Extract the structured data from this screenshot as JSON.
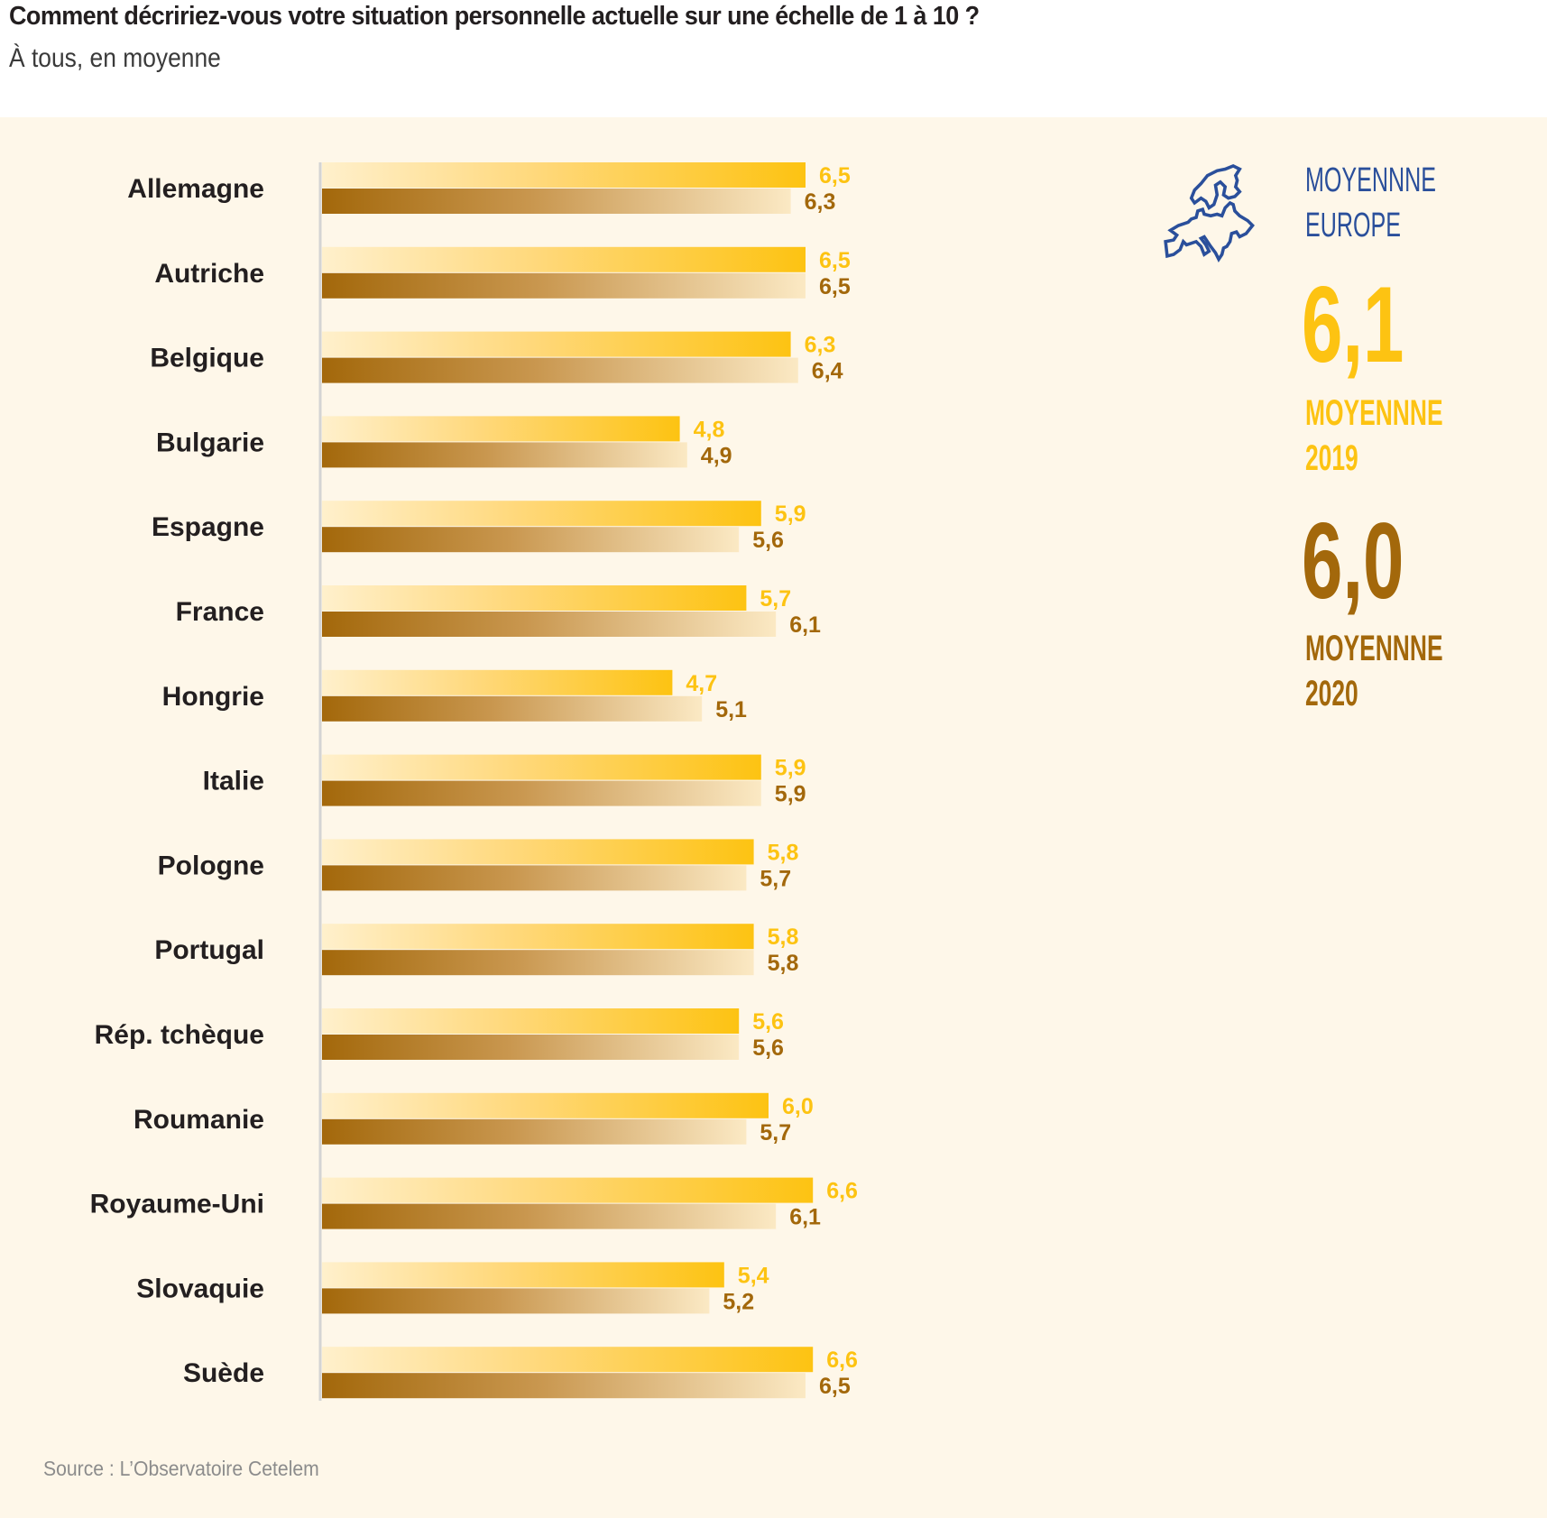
{
  "header": {
    "title": "Comment décririez-vous votre situation personnelle actuelle sur une échelle de 1 à 10 ?",
    "subtitle": "À tous, en moyenne"
  },
  "source": "Source : L’Observatoire Cetelem",
  "summary": {
    "europe_icon": "europe-map-icon",
    "europe_label_line1": "MOYENNNE",
    "europe_label_line2": "EUROPE",
    "avg_2019_value": "6,1",
    "avg_2019_label_line1": "MOYENNNE",
    "avg_2019_label_line2": "2019",
    "avg_2020_value": "6,0",
    "avg_2020_label_line1": "MOYENNNE",
    "avg_2020_label_line2": "2020"
  },
  "colors": {
    "series_2019_end": "#fdc312",
    "series_2019_start": "#fff0cc",
    "series_2020_start": "#a3680b",
    "series_2020_end": "#fbe9c4",
    "label_2019": "#fdc312",
    "label_2020": "#a3680b",
    "europe_blue": "#2a4f9b",
    "panel_bg": "#fef7e9"
  },
  "chart_data": {
    "type": "bar",
    "orientation": "horizontal",
    "title": "Comment décririez-vous votre situation personnelle actuelle sur une échelle de 1 à 10 ?",
    "subtitle": "À tous, en moyenne",
    "xlabel": "",
    "ylabel": "",
    "grid": false,
    "legend": "none (summary at right: 2019 yellow, 2020 brown)",
    "categories": [
      "Allemagne",
      "Autriche",
      "Belgique",
      "Bulgarie",
      "Espagne",
      "France",
      "Hongrie",
      "Italie",
      "Pologne",
      "Portugal",
      "Rép. tchèque",
      "Roumanie",
      "Royaume-Uni",
      "Slovaquie",
      "Suède"
    ],
    "series": [
      {
        "name": "2019",
        "values": [
          6.5,
          6.5,
          6.3,
          4.8,
          5.9,
          5.7,
          4.7,
          5.9,
          5.8,
          5.8,
          5.6,
          6.0,
          6.6,
          5.4,
          6.6
        ],
        "labels": [
          "6,5",
          "6,5",
          "6,3",
          "4,8",
          "5,9",
          "5,7",
          "4,7",
          "5,9",
          "5,8",
          "5,8",
          "5,6",
          "6,0",
          "6,6",
          "5,4",
          "6,6"
        ]
      },
      {
        "name": "2020",
        "values": [
          6.3,
          6.5,
          6.4,
          4.9,
          5.6,
          6.1,
          5.1,
          5.9,
          5.7,
          5.8,
          5.6,
          5.7,
          6.1,
          5.2,
          6.5
        ],
        "labels": [
          "6,3",
          "6,5",
          "6,4",
          "4,9",
          "5,6",
          "6,1",
          "5,1",
          "5,9",
          "5,7",
          "5,8",
          "5,6",
          "5,7",
          "6,1",
          "5,2",
          "6,5"
        ]
      }
    ],
    "averages": {
      "Europe 2019": 6.1,
      "Europe 2020": 6.0
    }
  }
}
